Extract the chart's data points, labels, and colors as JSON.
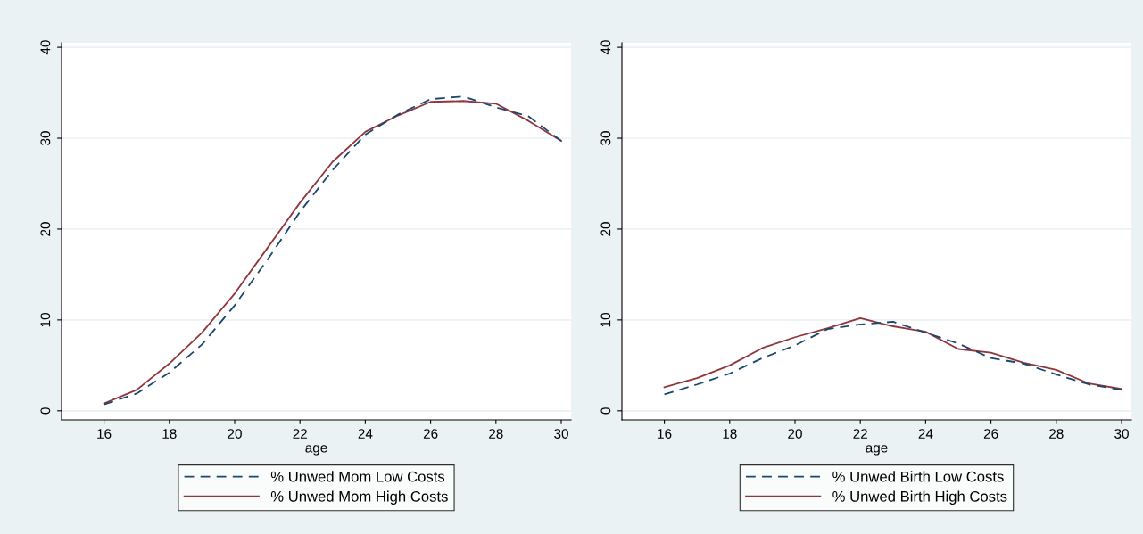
{
  "chart_data": [
    {
      "type": "line",
      "xlabel": "age",
      "x": [
        16,
        17,
        18,
        19,
        20,
        21,
        22,
        23,
        24,
        25,
        26,
        27,
        28,
        29,
        30
      ],
      "xlim": [
        14.7,
        30.3
      ],
      "xticks": [
        16,
        18,
        20,
        22,
        24,
        26,
        28,
        30
      ],
      "ylim": [
        -1,
        40.5
      ],
      "yticks": [
        0,
        10,
        20,
        30,
        40
      ],
      "grid": "y",
      "legend": "bottom",
      "series": [
        {
          "name": "% Unwed Mom Low Costs",
          "color": "#1a476f",
          "line_style": "dashed",
          "values": [
            0.7,
            1.9,
            4.2,
            7.3,
            11.6,
            16.6,
            21.9,
            26.5,
            30.4,
            32.6,
            34.3,
            34.6,
            33.4,
            32.4,
            29.7
          ]
        },
        {
          "name": "% Unwed Mom High Costs",
          "color": "#90353b",
          "line_style": "solid",
          "values": [
            0.8,
            2.3,
            5.2,
            8.6,
            12.9,
            17.9,
            22.9,
            27.4,
            30.7,
            32.5,
            34.0,
            34.1,
            33.8,
            31.9,
            29.7
          ]
        }
      ]
    },
    {
      "type": "line",
      "xlabel": "age",
      "x": [
        16,
        17,
        18,
        19,
        20,
        21,
        22,
        23,
        24,
        25,
        26,
        27,
        28,
        29,
        30
      ],
      "xlim": [
        14.7,
        30.3
      ],
      "xticks": [
        16,
        18,
        20,
        22,
        24,
        26,
        28,
        30
      ],
      "ylim": [
        -1,
        40.5
      ],
      "yticks": [
        0,
        10,
        20,
        30,
        40
      ],
      "grid": "y",
      "legend": "bottom",
      "series": [
        {
          "name": "% Unwed Birth Low Costs",
          "color": "#1a476f",
          "line_style": "dashed",
          "values": [
            1.8,
            2.9,
            4.1,
            5.8,
            7.2,
            9.0,
            9.5,
            9.8,
            8.6,
            7.4,
            5.8,
            5.2,
            4.0,
            2.9,
            2.3
          ]
        },
        {
          "name": "% Unwed Birth High Costs",
          "color": "#90353b",
          "line_style": "solid",
          "values": [
            2.6,
            3.6,
            5.0,
            6.9,
            8.1,
            9.1,
            10.2,
            9.3,
            8.7,
            6.8,
            6.4,
            5.3,
            4.5,
            3.0,
            2.4
          ]
        }
      ]
    }
  ]
}
